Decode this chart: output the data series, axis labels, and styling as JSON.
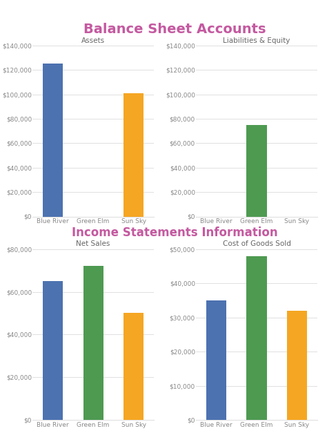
{
  "title1": "Balance Sheet Accounts",
  "title2": "Income Statements Information",
  "subtitle_assets": "Assets",
  "subtitle_liabilities": "Liabilities & Equity",
  "subtitle_netsales": "Net Sales",
  "subtitle_cogs": "Cost of Goods Sold",
  "companies": [
    "Blue River",
    "Green Elm",
    "Sun Sky"
  ],
  "assets": [
    125000,
    0,
    101000
  ],
  "liabilities": [
    0,
    75000,
    0
  ],
  "net_sales": [
    65000,
    72000,
    50000
  ],
  "cogs": [
    35000,
    48000,
    32000
  ],
  "colors": {
    "Blue River": "#4C72B0",
    "Green Elm": "#4E9A51",
    "Sun Sky": "#F5A623"
  },
  "title_color": "#C459A0",
  "axis_label_color": "#666666",
  "tick_color": "#888888",
  "grid_color": "#E0E0E0",
  "bg_color": "#FFFFFF",
  "assets_ylim": 130000,
  "assets_ystep": 20000,
  "liabilities_ylim": 130000,
  "liabilities_ystep": 20000,
  "netsales_ylim": 80000,
  "netsales_ystep": 20000,
  "cogs_ylim": 50000,
  "cogs_ystep": 10000
}
